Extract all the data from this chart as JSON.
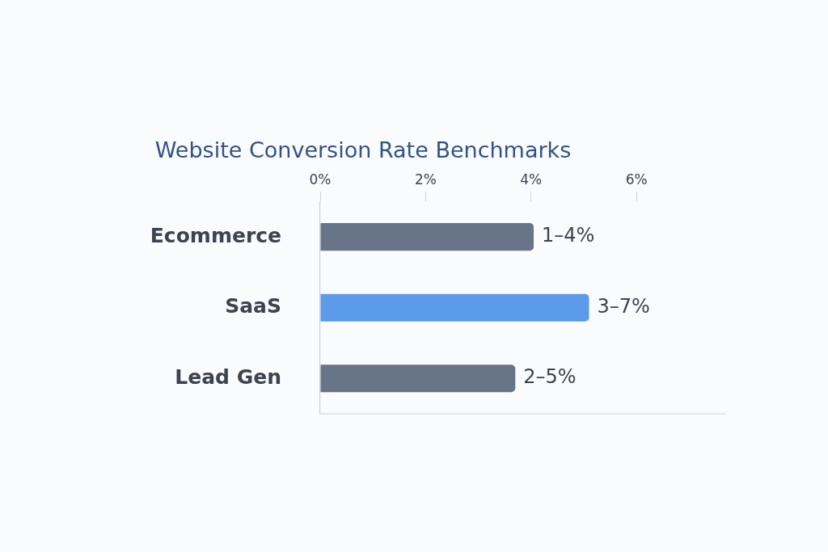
{
  "chart_data": {
    "type": "bar",
    "orientation": "horizontal",
    "title": "Website Conversion Rate Benchmarks",
    "categories": [
      "Ecommerce",
      "SaaS",
      "Lead Gen"
    ],
    "values": [
      4.05,
      5.1,
      3.7
    ],
    "colors": [
      "#687588",
      "#5b9bea",
      "#687588"
    ],
    "annotations": [
      {
        "text": "1–4%",
        "x": 4.05,
        "y": "Ecommerce"
      },
      {
        "text": "3–7%",
        "x": 5.1,
        "y": "SaaS"
      },
      {
        "text": "2–5%",
        "x": 3.7,
        "y": "Lead Gen"
      }
    ],
    "xlim": [
      0,
      7.7
    ],
    "xticks": [
      {
        "value": 0,
        "label": "0%"
      },
      {
        "value": 2,
        "label": "2%"
      },
      {
        "value": 4,
        "label": "4%"
      },
      {
        "value": 6,
        "label": "6%"
      }
    ],
    "grid": false,
    "legend": false
  }
}
